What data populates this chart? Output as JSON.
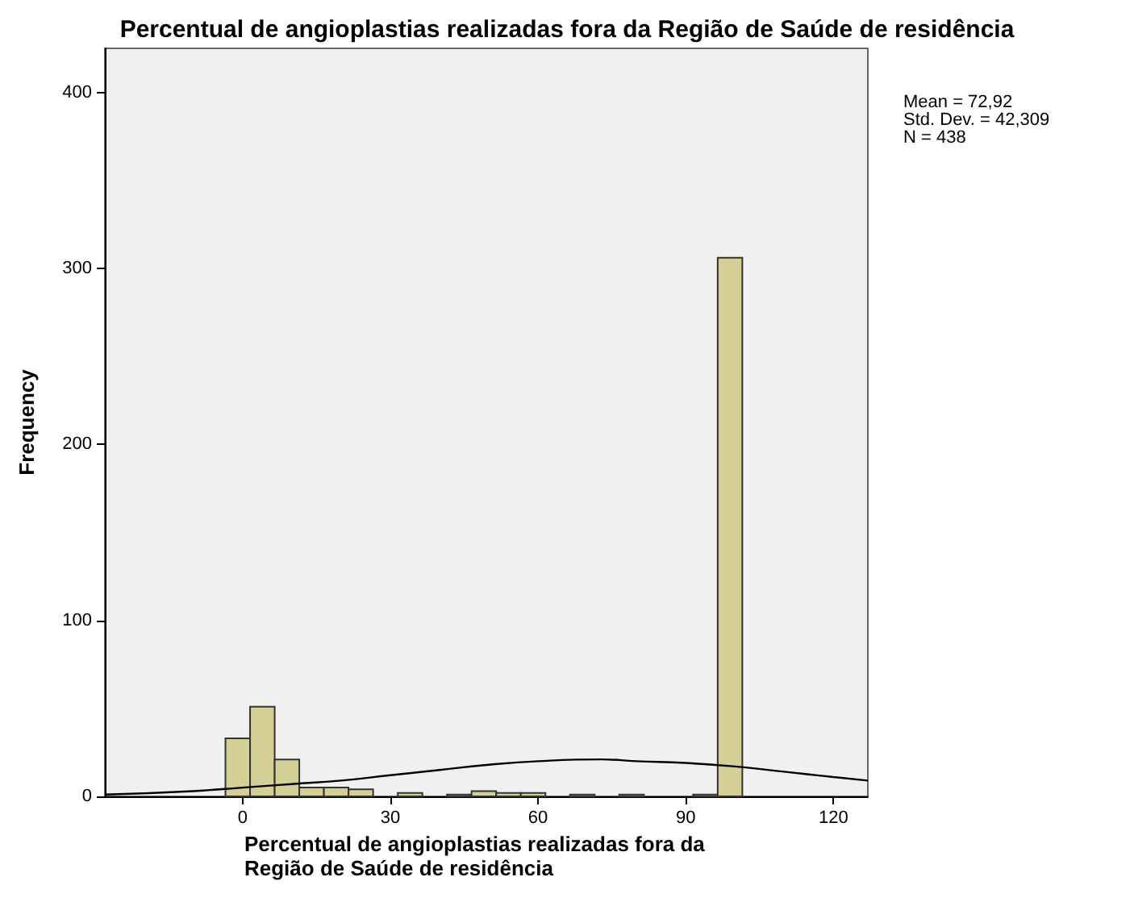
{
  "chart_data": {
    "type": "histogram",
    "title": "Percentual de angioplastias realizadas fora da Região de Saúde de residência",
    "xlabel": "Percentual de angioplastias realizadas fora da Região de Saúde de residência",
    "ylabel": "Frequency",
    "bins": [
      -3.5,
      1.5,
      6.5,
      11.5,
      16.5,
      21.5,
      26.5,
      31.5,
      36.5,
      41.5,
      46.5,
      51.5,
      56.5,
      61.5,
      66.5,
      71.5,
      76.5,
      81.5,
      86.5,
      91.5,
      96.5,
      101.5
    ],
    "values": [
      33,
      51,
      21,
      5,
      5,
      4,
      0,
      2,
      0,
      1,
      3,
      2,
      2,
      0,
      1,
      0,
      1,
      0,
      0,
      1,
      306
    ],
    "color": "#d3cf96",
    "series": [
      {
        "type": "line",
        "color": "#000000",
        "x": [
          -28,
          -10,
          0,
          10,
          20,
          30,
          40,
          50,
          60,
          72.92,
          80,
          90,
          100,
          110,
          120,
          127
        ],
        "values": [
          1,
          3,
          5,
          7,
          9,
          12,
          15,
          18,
          20,
          21,
          20,
          19,
          17,
          14,
          11,
          9
        ]
      }
    ],
    "marker": "none",
    "line_style": "solid",
    "xlim": [
      -28,
      127
    ],
    "xticks": [
      0,
      30,
      60,
      90,
      120
    ],
    "ylim": [
      0,
      425
    ],
    "yticks": [
      0,
      100,
      200,
      300,
      400
    ],
    "grid": false,
    "annotations": [
      "Mean = 72,92",
      "Std. Dev. = 42,309",
      "N = 438"
    ]
  }
}
